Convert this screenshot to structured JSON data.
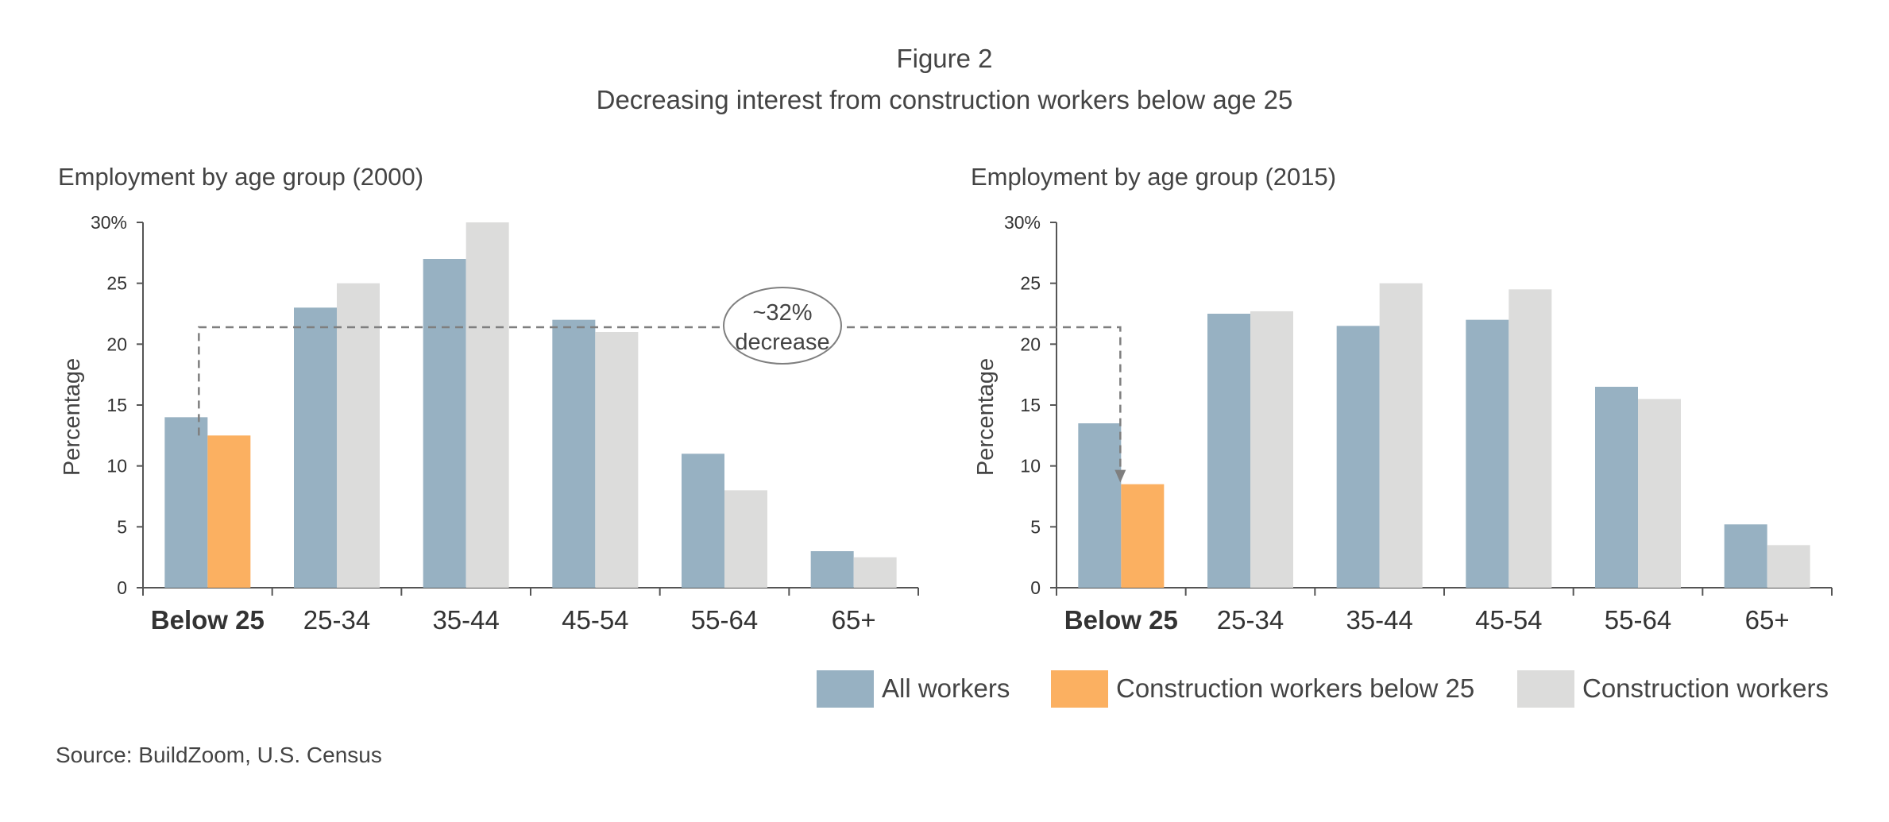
{
  "figure_label": "Figure 2",
  "figure_title": "Decreasing interest from construction workers below age 25",
  "source": "Source: BuildZoom, U.S. Census",
  "annotation": {
    "line1": "~32%",
    "line2": "decrease"
  },
  "legend": [
    {
      "label": "All workers",
      "color": "#97b1c2"
    },
    {
      "label": "Construction workers below 25",
      "color": "#fbb061"
    },
    {
      "label": "Construction workers",
      "color": "#dcdcdb"
    }
  ],
  "colors": {
    "all_workers": "#97b1c2",
    "highlight": "#fbb061",
    "construction": "#dcdcdb",
    "axis": "#555555",
    "annotation": "#7f7f7f"
  },
  "chart_data": [
    {
      "type": "bar",
      "title": "Employment by age group (2000)",
      "ylabel": "Percentage",
      "ylim": [
        0,
        30
      ],
      "yticks": [
        "0",
        "5",
        "10",
        "15",
        "20",
        "25",
        "30%"
      ],
      "categories": [
        "Below 25",
        "25-34",
        "35-44",
        "45-54",
        "55-64",
        "65+"
      ],
      "series": [
        {
          "name": "All workers",
          "values": [
            14,
            23,
            27,
            22,
            11,
            3
          ]
        },
        {
          "name": "Construction workers",
          "values": [
            12.5,
            25,
            30,
            21,
            8,
            2.5
          ]
        }
      ],
      "highlight": {
        "series": "Construction workers",
        "category": "Below 25",
        "label": "Construction workers below 25"
      }
    },
    {
      "type": "bar",
      "title": "Employment by age group (2015)",
      "ylabel": "Percentage",
      "ylim": [
        0,
        30
      ],
      "yticks": [
        "0",
        "5",
        "10",
        "15",
        "20",
        "25",
        "30%"
      ],
      "categories": [
        "Below 25",
        "25-34",
        "35-44",
        "45-54",
        "55-64",
        "65+"
      ],
      "series": [
        {
          "name": "All workers",
          "values": [
            13.5,
            22.5,
            21.5,
            22,
            16.5,
            5.2
          ]
        },
        {
          "name": "Construction workers",
          "values": [
            8.5,
            22.7,
            25,
            24.5,
            15.5,
            3.5
          ]
        }
      ],
      "highlight": {
        "series": "Construction workers",
        "category": "Below 25",
        "label": "Construction workers below 25"
      }
    }
  ]
}
